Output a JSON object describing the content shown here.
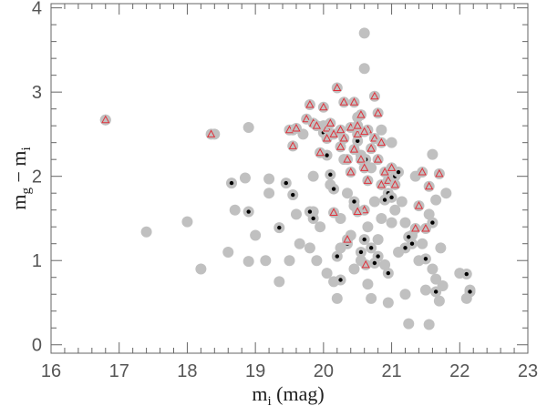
{
  "chart_data": {
    "type": "scatter",
    "xlabel_main": "m",
    "xlabel_sub": "i",
    "xlabel_unit": " (mag)",
    "ylabel_parts": [
      {
        "text": "m",
        "sub": false
      },
      {
        "text": "g",
        "sub": true
      },
      {
        "text": " − m",
        "sub": false
      },
      {
        "text": "i",
        "sub": true
      }
    ],
    "xlim": [
      16,
      23
    ],
    "ylim": [
      -0.1,
      4.05
    ],
    "xticks": [
      "16",
      "17",
      "18",
      "19",
      "20",
      "21",
      "22",
      "23"
    ],
    "yticks": [
      "0",
      "1",
      "2",
      "3",
      "4"
    ],
    "grid": false,
    "colors": {
      "gray_points": "#c0c0c0",
      "black_marker": "#000000",
      "red_triangle": "#e0303a",
      "axis": "#666666"
    },
    "series": [
      {
        "marker": "gray-circle",
        "points": [
          [
            16.8,
            2.67
          ],
          [
            17.4,
            1.34
          ],
          [
            18.0,
            1.46
          ],
          [
            18.2,
            0.9
          ],
          [
            18.4,
            2.5
          ],
          [
            18.6,
            1.1
          ],
          [
            18.7,
            1.6
          ],
          [
            18.85,
            1.98
          ],
          [
            18.9,
            0.99
          ],
          [
            18.9,
            2.58
          ],
          [
            19.0,
            1.3
          ],
          [
            19.15,
            1.0
          ],
          [
            19.2,
            1.97
          ],
          [
            19.2,
            1.8
          ],
          [
            19.35,
            0.75
          ],
          [
            19.5,
            1.0
          ],
          [
            19.6,
            1.55
          ],
          [
            19.65,
            1.2
          ],
          [
            19.7,
            2.5
          ],
          [
            19.8,
            1.15
          ],
          [
            19.85,
            2.0
          ],
          [
            19.9,
            1.0
          ],
          [
            19.95,
            1.4
          ],
          [
            20.0,
            2.6
          ],
          [
            20.05,
            0.85
          ],
          [
            20.1,
            1.9
          ],
          [
            20.15,
            0.75
          ],
          [
            20.2,
            0.55
          ],
          [
            20.25,
            1.5
          ],
          [
            20.3,
            2.2
          ],
          [
            20.35,
            1.8
          ],
          [
            20.4,
            1.3
          ],
          [
            20.45,
            0.9
          ],
          [
            20.5,
            2.7
          ],
          [
            20.55,
            1.0
          ],
          [
            20.6,
            3.7
          ],
          [
            20.6,
            3.28
          ],
          [
            20.65,
            1.4
          ],
          [
            20.7,
            0.55
          ],
          [
            20.7,
            2.1
          ],
          [
            20.75,
            1.7
          ],
          [
            20.8,
            1.25
          ],
          [
            20.85,
            2.55
          ],
          [
            20.9,
            0.95
          ],
          [
            20.95,
            0.5
          ],
          [
            21.0,
            1.45
          ],
          [
            21.0,
            2.4
          ],
          [
            21.1,
            1.1
          ],
          [
            21.15,
            1.7
          ],
          [
            21.2,
            0.6
          ],
          [
            21.25,
            0.25
          ],
          [
            21.3,
            1.3
          ],
          [
            21.35,
            2.0
          ],
          [
            21.4,
            1.0
          ],
          [
            21.45,
            1.2
          ],
          [
            21.5,
            0.65
          ],
          [
            21.55,
            1.55
          ],
          [
            21.55,
            0.24
          ],
          [
            21.6,
            0.9
          ],
          [
            21.6,
            2.26
          ],
          [
            21.65,
            0.78
          ],
          [
            21.7,
            0.52
          ],
          [
            21.72,
            1.15
          ],
          [
            21.75,
            0.7
          ],
          [
            21.8,
            1.8
          ],
          [
            22.0,
            0.85
          ],
          [
            22.1,
            0.55
          ],
          [
            22.15,
            0.65
          ],
          [
            20.45,
            1.65
          ],
          [
            20.85,
            1.5
          ],
          [
            21.05,
            1.6
          ],
          [
            20.25,
            1.15
          ],
          [
            20.95,
            1.75
          ],
          [
            21.2,
            1.45
          ],
          [
            20.55,
            2.25
          ],
          [
            19.55,
            2.55
          ],
          [
            20.95,
            1.95
          ],
          [
            20.65,
            0.72
          ],
          [
            21.65,
            1.72
          ],
          [
            19.85,
            1.58
          ]
        ]
      },
      {
        "marker": "gray-circle-black-dot",
        "points": [
          [
            18.65,
            1.92
          ],
          [
            18.9,
            1.58
          ],
          [
            19.35,
            1.39
          ],
          [
            19.45,
            1.92
          ],
          [
            19.55,
            1.78
          ],
          [
            19.85,
            1.5
          ],
          [
            19.8,
            1.58
          ],
          [
            20.0,
            2.52
          ],
          [
            20.05,
            2.25
          ],
          [
            20.1,
            2.02
          ],
          [
            20.15,
            1.85
          ],
          [
            20.2,
            1.05
          ],
          [
            20.25,
            0.77
          ],
          [
            20.35,
            1.2
          ],
          [
            20.45,
            1.7
          ],
          [
            20.5,
            2.42
          ],
          [
            20.55,
            1.1
          ],
          [
            20.6,
            1.25
          ],
          [
            20.62,
            2.2
          ],
          [
            20.7,
            1.15
          ],
          [
            20.75,
            0.97
          ],
          [
            20.8,
            1.05
          ],
          [
            20.9,
            1.72
          ],
          [
            20.95,
            1.8
          ],
          [
            20.95,
            0.85
          ],
          [
            21.0,
            1.75
          ],
          [
            21.05,
            2.0
          ],
          [
            21.1,
            2.05
          ],
          [
            21.2,
            1.15
          ],
          [
            21.25,
            1.28
          ],
          [
            21.3,
            1.2
          ],
          [
            21.5,
            1.02
          ],
          [
            21.6,
            1.45
          ],
          [
            21.65,
            0.63
          ],
          [
            22.1,
            0.84
          ],
          [
            22.15,
            0.63
          ]
        ]
      },
      {
        "marker": "gray-circle-red-triangle",
        "points": [
          [
            16.8,
            2.67
          ],
          [
            18.35,
            2.5
          ],
          [
            19.5,
            2.55
          ],
          [
            19.55,
            2.36
          ],
          [
            19.6,
            2.57
          ],
          [
            19.75,
            2.68
          ],
          [
            19.8,
            2.85
          ],
          [
            19.85,
            2.63
          ],
          [
            19.9,
            2.6
          ],
          [
            19.95,
            2.28
          ],
          [
            20.0,
            2.82
          ],
          [
            20.05,
            2.57
          ],
          [
            20.05,
            2.45
          ],
          [
            20.1,
            2.63
          ],
          [
            20.15,
            2.5
          ],
          [
            20.15,
            1.57
          ],
          [
            20.2,
            3.05
          ],
          [
            20.25,
            2.55
          ],
          [
            20.25,
            2.35
          ],
          [
            20.3,
            2.45
          ],
          [
            20.3,
            2.88
          ],
          [
            20.35,
            2.2
          ],
          [
            20.4,
            2.05
          ],
          [
            20.4,
            2.58
          ],
          [
            20.35,
            1.25
          ],
          [
            20.45,
            2.32
          ],
          [
            20.45,
            2.88
          ],
          [
            20.5,
            2.5
          ],
          [
            20.55,
            2.2
          ],
          [
            20.55,
            2.73
          ],
          [
            20.6,
            2.1
          ],
          [
            20.6,
            1.6
          ],
          [
            20.62,
            0.95
          ],
          [
            20.65,
            2.55
          ],
          [
            20.65,
            1.95
          ],
          [
            20.7,
            2.33
          ],
          [
            20.75,
            2.95
          ],
          [
            20.75,
            2.45
          ],
          [
            20.8,
            2.75
          ],
          [
            20.8,
            2.2
          ],
          [
            20.85,
            2.4
          ],
          [
            20.85,
            1.9
          ],
          [
            20.9,
            2.05
          ],
          [
            20.95,
            1.95
          ],
          [
            21.0,
            2.1
          ],
          [
            21.05,
            1.9
          ],
          [
            21.4,
            1.65
          ],
          [
            21.45,
            2.05
          ],
          [
            21.55,
            1.88
          ],
          [
            21.5,
            1.38
          ],
          [
            21.35,
            1.38
          ],
          [
            21.7,
            2.03
          ],
          [
            20.6,
            2.53
          ],
          [
            20.5,
            2.6
          ],
          [
            20.5,
            1.58
          ]
        ]
      }
    ]
  }
}
